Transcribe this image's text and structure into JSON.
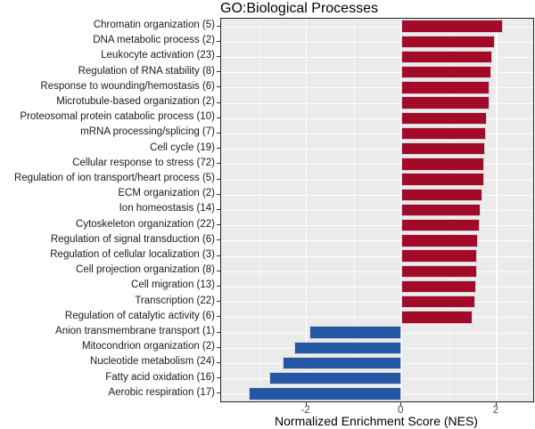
{
  "chart_data": {
    "type": "bar",
    "orientation": "horizontal",
    "title": "GO:Biological Processes",
    "xlabel": "Normalized Enrichment Score (NES)",
    "ylabel": "",
    "xlim": [
      -3.79,
      2.77
    ],
    "x_major_ticks": [
      -2,
      0,
      2
    ],
    "x_major_tick_labels": [
      "-2",
      "0",
      "2"
    ],
    "x_minor_ticks": [
      -3,
      -1,
      1
    ],
    "grid": "on",
    "legend": "none",
    "colors": {
      "positive_bar": "#A30A2A",
      "negative_bar": "#2457A3",
      "panel_bg": "#EBEBEB",
      "gridline": "#FFFFFF",
      "panel_border": "#222222"
    },
    "categories": [
      {
        "label": "Chromatin organization",
        "count": 5,
        "nes": 2.13
      },
      {
        "label": "DNA metabolic process",
        "count": 2,
        "nes": 1.96
      },
      {
        "label": "Leukocyte activation",
        "count": 23,
        "nes": 1.9
      },
      {
        "label": "Regulation of RNA stability",
        "count": 8,
        "nes": 1.88
      },
      {
        "label": "Response to wounding/hemostasis",
        "count": 6,
        "nes": 1.86
      },
      {
        "label": "Microtubule-based organization",
        "count": 2,
        "nes": 1.85
      },
      {
        "label": "Proteosomal protein catabolic process",
        "count": 10,
        "nes": 1.79
      },
      {
        "label": "mRNA processing/splicing",
        "count": 7,
        "nes": 1.78
      },
      {
        "label": "Cell cycle",
        "count": 19,
        "nes": 1.75
      },
      {
        "label": "Cellular response to stress",
        "count": 72,
        "nes": 1.74
      },
      {
        "label": "Regulation of ion transport/heart process",
        "count": 5,
        "nes": 1.73
      },
      {
        "label": "ECM organization",
        "count": 2,
        "nes": 1.71
      },
      {
        "label": "Ion homeostasis",
        "count": 14,
        "nes": 1.66
      },
      {
        "label": "Cytoskeleton organization",
        "count": 22,
        "nes": 1.64
      },
      {
        "label": "Regulation of signal transduction",
        "count": 6,
        "nes": 1.61
      },
      {
        "label": "Regulation of cellular localization",
        "count": 3,
        "nes": 1.59
      },
      {
        "label": "Cell projection organization",
        "count": 8,
        "nes": 1.58
      },
      {
        "label": "Cell migration",
        "count": 13,
        "nes": 1.57
      },
      {
        "label": "Transcription",
        "count": 22,
        "nes": 1.55
      },
      {
        "label": "Regulation of catalytic activity",
        "count": 6,
        "nes": 1.5
      },
      {
        "label": "Anion transmembrane transport",
        "count": 1,
        "nes": -1.93
      },
      {
        "label": "Mitocondrion organization",
        "count": 2,
        "nes": -2.25
      },
      {
        "label": "Nucleotide metabolism",
        "count": 24,
        "nes": -2.5
      },
      {
        "label": "Fatty acid oxidation",
        "count": 16,
        "nes": -2.77
      },
      {
        "label": "Aerobic respiration",
        "count": 17,
        "nes": -3.2
      }
    ]
  }
}
